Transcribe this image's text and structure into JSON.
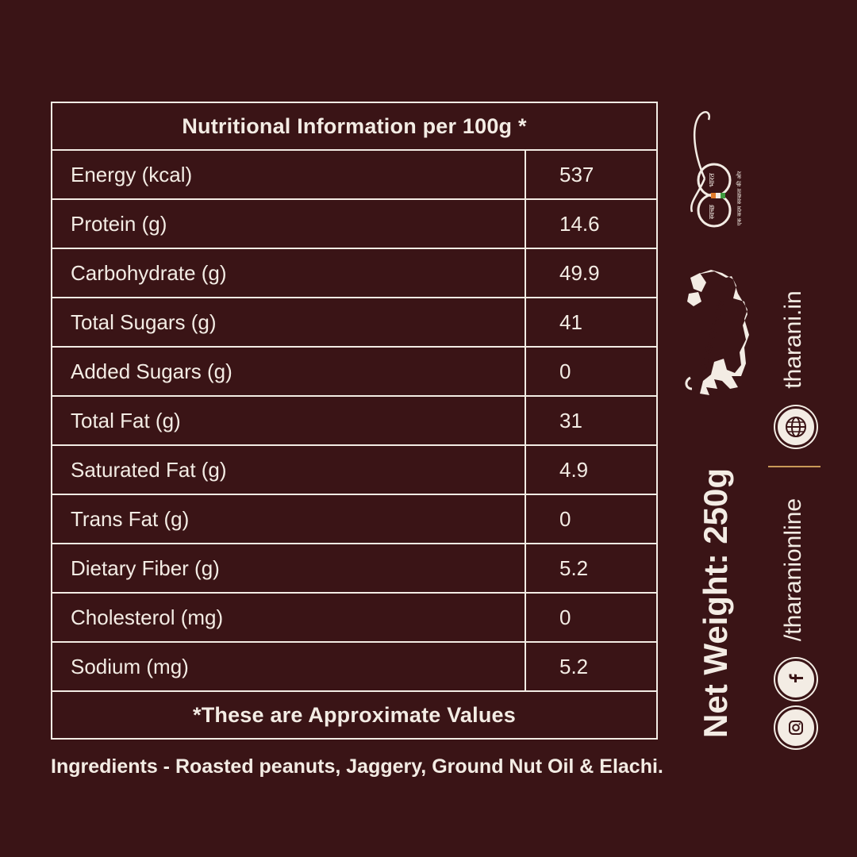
{
  "table": {
    "title": "Nutritional Information per 100g *",
    "rows": [
      {
        "name": "Energy (kcal)",
        "value": "537"
      },
      {
        "name": "Protein (g)",
        "value": "14.6"
      },
      {
        "name": "Carbohydrate (g)",
        "value": "49.9"
      },
      {
        "name": "Total Sugars (g)",
        "value": "41"
      },
      {
        "name": "Added Sugars (g)",
        "value": "0"
      },
      {
        "name": "Total Fat (g)",
        "value": "31"
      },
      {
        "name": "Saturated Fat (g)",
        "value": "4.9"
      },
      {
        "name": "Trans Fat (g)",
        "value": "0"
      },
      {
        "name": "Dietary Fiber (g)",
        "value": "5.2"
      },
      {
        "name": "Cholesterol (mg)",
        "value": "0"
      },
      {
        "name": "Sodium (mg)",
        "value": "5.2"
      }
    ],
    "footnote": "*These are Approximate Values"
  },
  "ingredients": "Ingredients - Roasted peanuts, Jaggery, Ground Nut Oil & Elachi.",
  "net_weight": "Net Weight: 250g",
  "website": "tharani.in",
  "social_handle": "/tharanionline",
  "logos": {
    "swachh_bharat_line1": "भारत",
    "swachh_bharat_line2": "स्वच्छ",
    "swachh_bharat_tagline": "एक कदम स्वच्छता की ओर",
    "make_in_india": "MAKE IN INDIA"
  },
  "icons": {
    "globe": "globe-icon",
    "facebook": "facebook-icon",
    "instagram": "instagram-icon"
  },
  "colors": {
    "background": "#3a1416",
    "text": "#f3ece4",
    "divider_accent": "#c99a58"
  }
}
